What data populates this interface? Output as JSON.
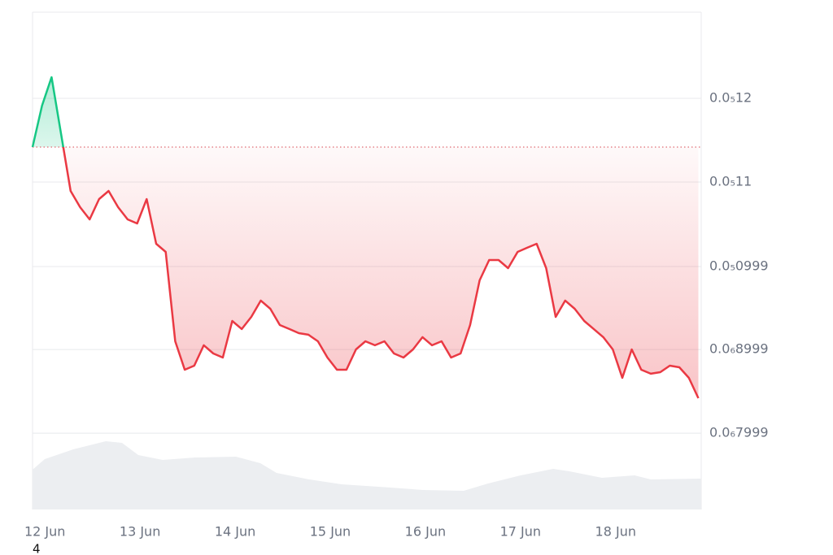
{
  "footnote": "4",
  "chart_data": {
    "type": "line",
    "x": [
      -0.13,
      -0.03,
      0.07,
      0.17,
      0.27,
      0.37,
      0.47,
      0.57,
      0.67,
      0.77,
      0.87,
      0.97,
      1.07,
      1.17,
      1.27,
      1.37,
      1.47,
      1.57,
      1.67,
      1.77,
      1.87,
      1.97,
      2.07,
      2.17,
      2.27,
      2.37,
      2.47,
      2.57,
      2.67,
      2.77,
      2.87,
      2.97,
      3.07,
      3.17,
      3.27,
      3.37,
      3.47,
      3.57,
      3.67,
      3.77,
      3.87,
      3.97,
      4.07,
      4.17,
      4.27,
      4.37,
      4.47,
      4.57,
      4.67,
      4.77,
      4.87,
      4.97,
      5.07,
      5.17,
      5.27,
      5.37,
      5.47,
      5.57,
      5.67,
      5.77,
      5.87,
      5.97,
      6.07,
      6.17,
      6.27,
      6.37,
      6.47,
      6.57,
      6.67,
      6.77,
      6.87
    ],
    "series": [
      {
        "color": "#ea3943",
        "up_color": "#16c784",
        "values": [
          1.1417e-06,
          1.1913e-06,
          1.2252e-06,
          1.1573e-06,
          1.0893e-06,
          1.0699e-06,
          1.0553e-06,
          1.0796e-06,
          1.0893e-06,
          1.0699e-06,
          1.0553e-06,
          1.0505e-06,
          1.0796e-06,
          1.0262e-06,
          1.0165e-06,
          9.097e-07,
          8.757e-07,
          8.806e-07,
          9.049e-07,
          8.951e-07,
          8.903e-07,
          9.34e-07,
          9.243e-07,
          9.388e-07,
          9.583e-07,
          9.485e-07,
          9.291e-07,
          9.243e-07,
          9.194e-07,
          9.175e-07,
          9.097e-07,
          8.903e-07,
          8.757e-07,
          8.757e-07,
          9e-07,
          9.097e-07,
          9.049e-07,
          9.097e-07,
          8.951e-07,
          8.903e-07,
          9e-07,
          9.146e-07,
          9.049e-07,
          9.097e-07,
          8.903e-07,
          8.951e-07,
          9.291e-07,
          9.825e-07,
          1.0068e-06,
          1.0068e-06,
          9.971e-07,
          1.0165e-06,
          1.0214e-06,
          1.0262e-06,
          9.971e-07,
          9.388e-07,
          9.583e-07,
          9.485e-07,
          9.34e-07,
          9.243e-07,
          9.146e-07,
          9e-07,
          8.66e-07,
          9e-07,
          8.757e-07,
          8.709e-07,
          8.728e-07,
          8.806e-07,
          8.786e-07,
          8.66e-07,
          8.417e-07
        ]
      }
    ],
    "xlim": [
      -0.13,
      6.9
    ],
    "xticks": [
      {
        "value": 0,
        "label": "12 Jun"
      },
      {
        "value": 1,
        "label": "13 Jun"
      },
      {
        "value": 2,
        "label": "14 Jun"
      },
      {
        "value": 3,
        "label": "15 Jun"
      },
      {
        "value": 4,
        "label": "16 Jun"
      },
      {
        "value": 5,
        "label": "17 Jun"
      },
      {
        "value": 6,
        "label": "18 Jun"
      }
    ],
    "ylim": [
      7.087e-07,
      1.3029e-06
    ],
    "yticks": [
      {
        "value": 1.2e-06,
        "label": "0.0₅12"
      },
      {
        "value": 1.1e-06,
        "label": "0.0₅11"
      },
      {
        "value": 9.99e-07,
        "label": "0.0₅0999"
      },
      {
        "value": 8.999e-07,
        "label": "0.0₆8999"
      },
      {
        "value": 7.999e-07,
        "label": "0.0₆7999"
      }
    ],
    "grid": true
  }
}
